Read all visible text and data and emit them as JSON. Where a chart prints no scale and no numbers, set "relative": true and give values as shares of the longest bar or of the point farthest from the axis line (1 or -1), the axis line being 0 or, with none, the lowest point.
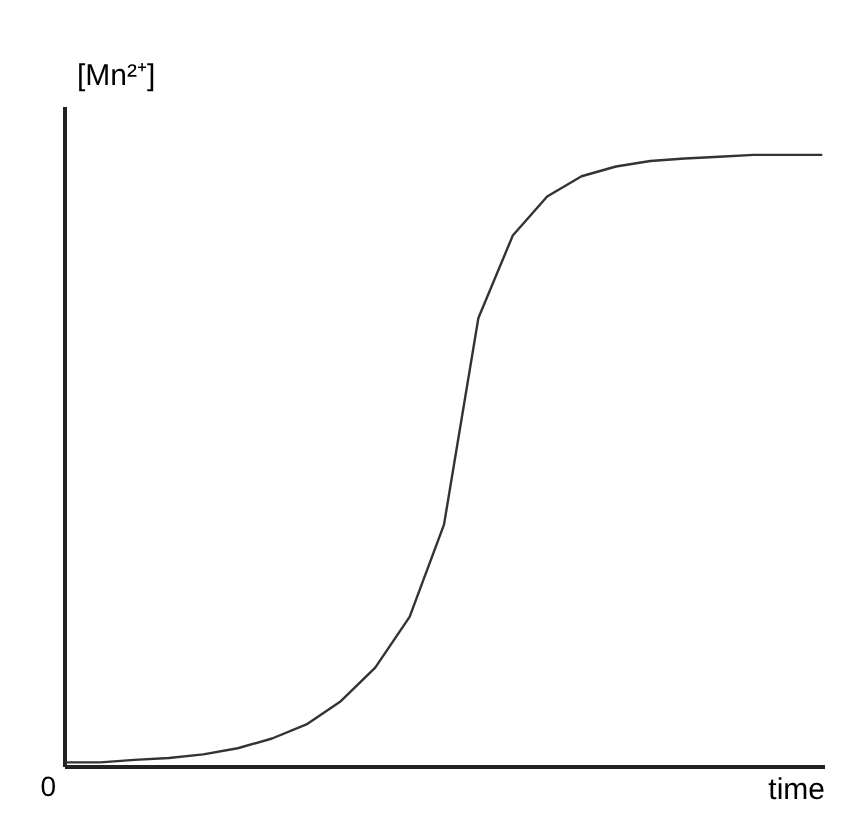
{
  "chart_data": {
    "type": "line",
    "relative": true,
    "ylabel": "[Mn²⁺]",
    "xlabel": "time",
    "annotations": [
      "0"
    ],
    "categories": [
      null,
      null,
      null,
      null,
      null,
      null,
      null,
      null,
      null,
      null,
      null,
      null,
      null,
      null,
      null,
      null,
      null,
      null,
      null,
      null,
      null,
      null,
      null
    ],
    "series": [
      {
        "color": "#333333",
        "values": [
          0.006,
          0.006,
          0.01,
          0.013,
          0.019,
          0.029,
          0.045,
          0.068,
          0.106,
          0.161,
          0.244,
          0.395,
          0.733,
          0.868,
          0.932,
          0.965,
          0.981,
          0.99,
          0.994,
          0.997,
          1,
          1,
          1
        ]
      }
    ],
    "legend": false,
    "grid": false,
    "tick_labels": false
  }
}
